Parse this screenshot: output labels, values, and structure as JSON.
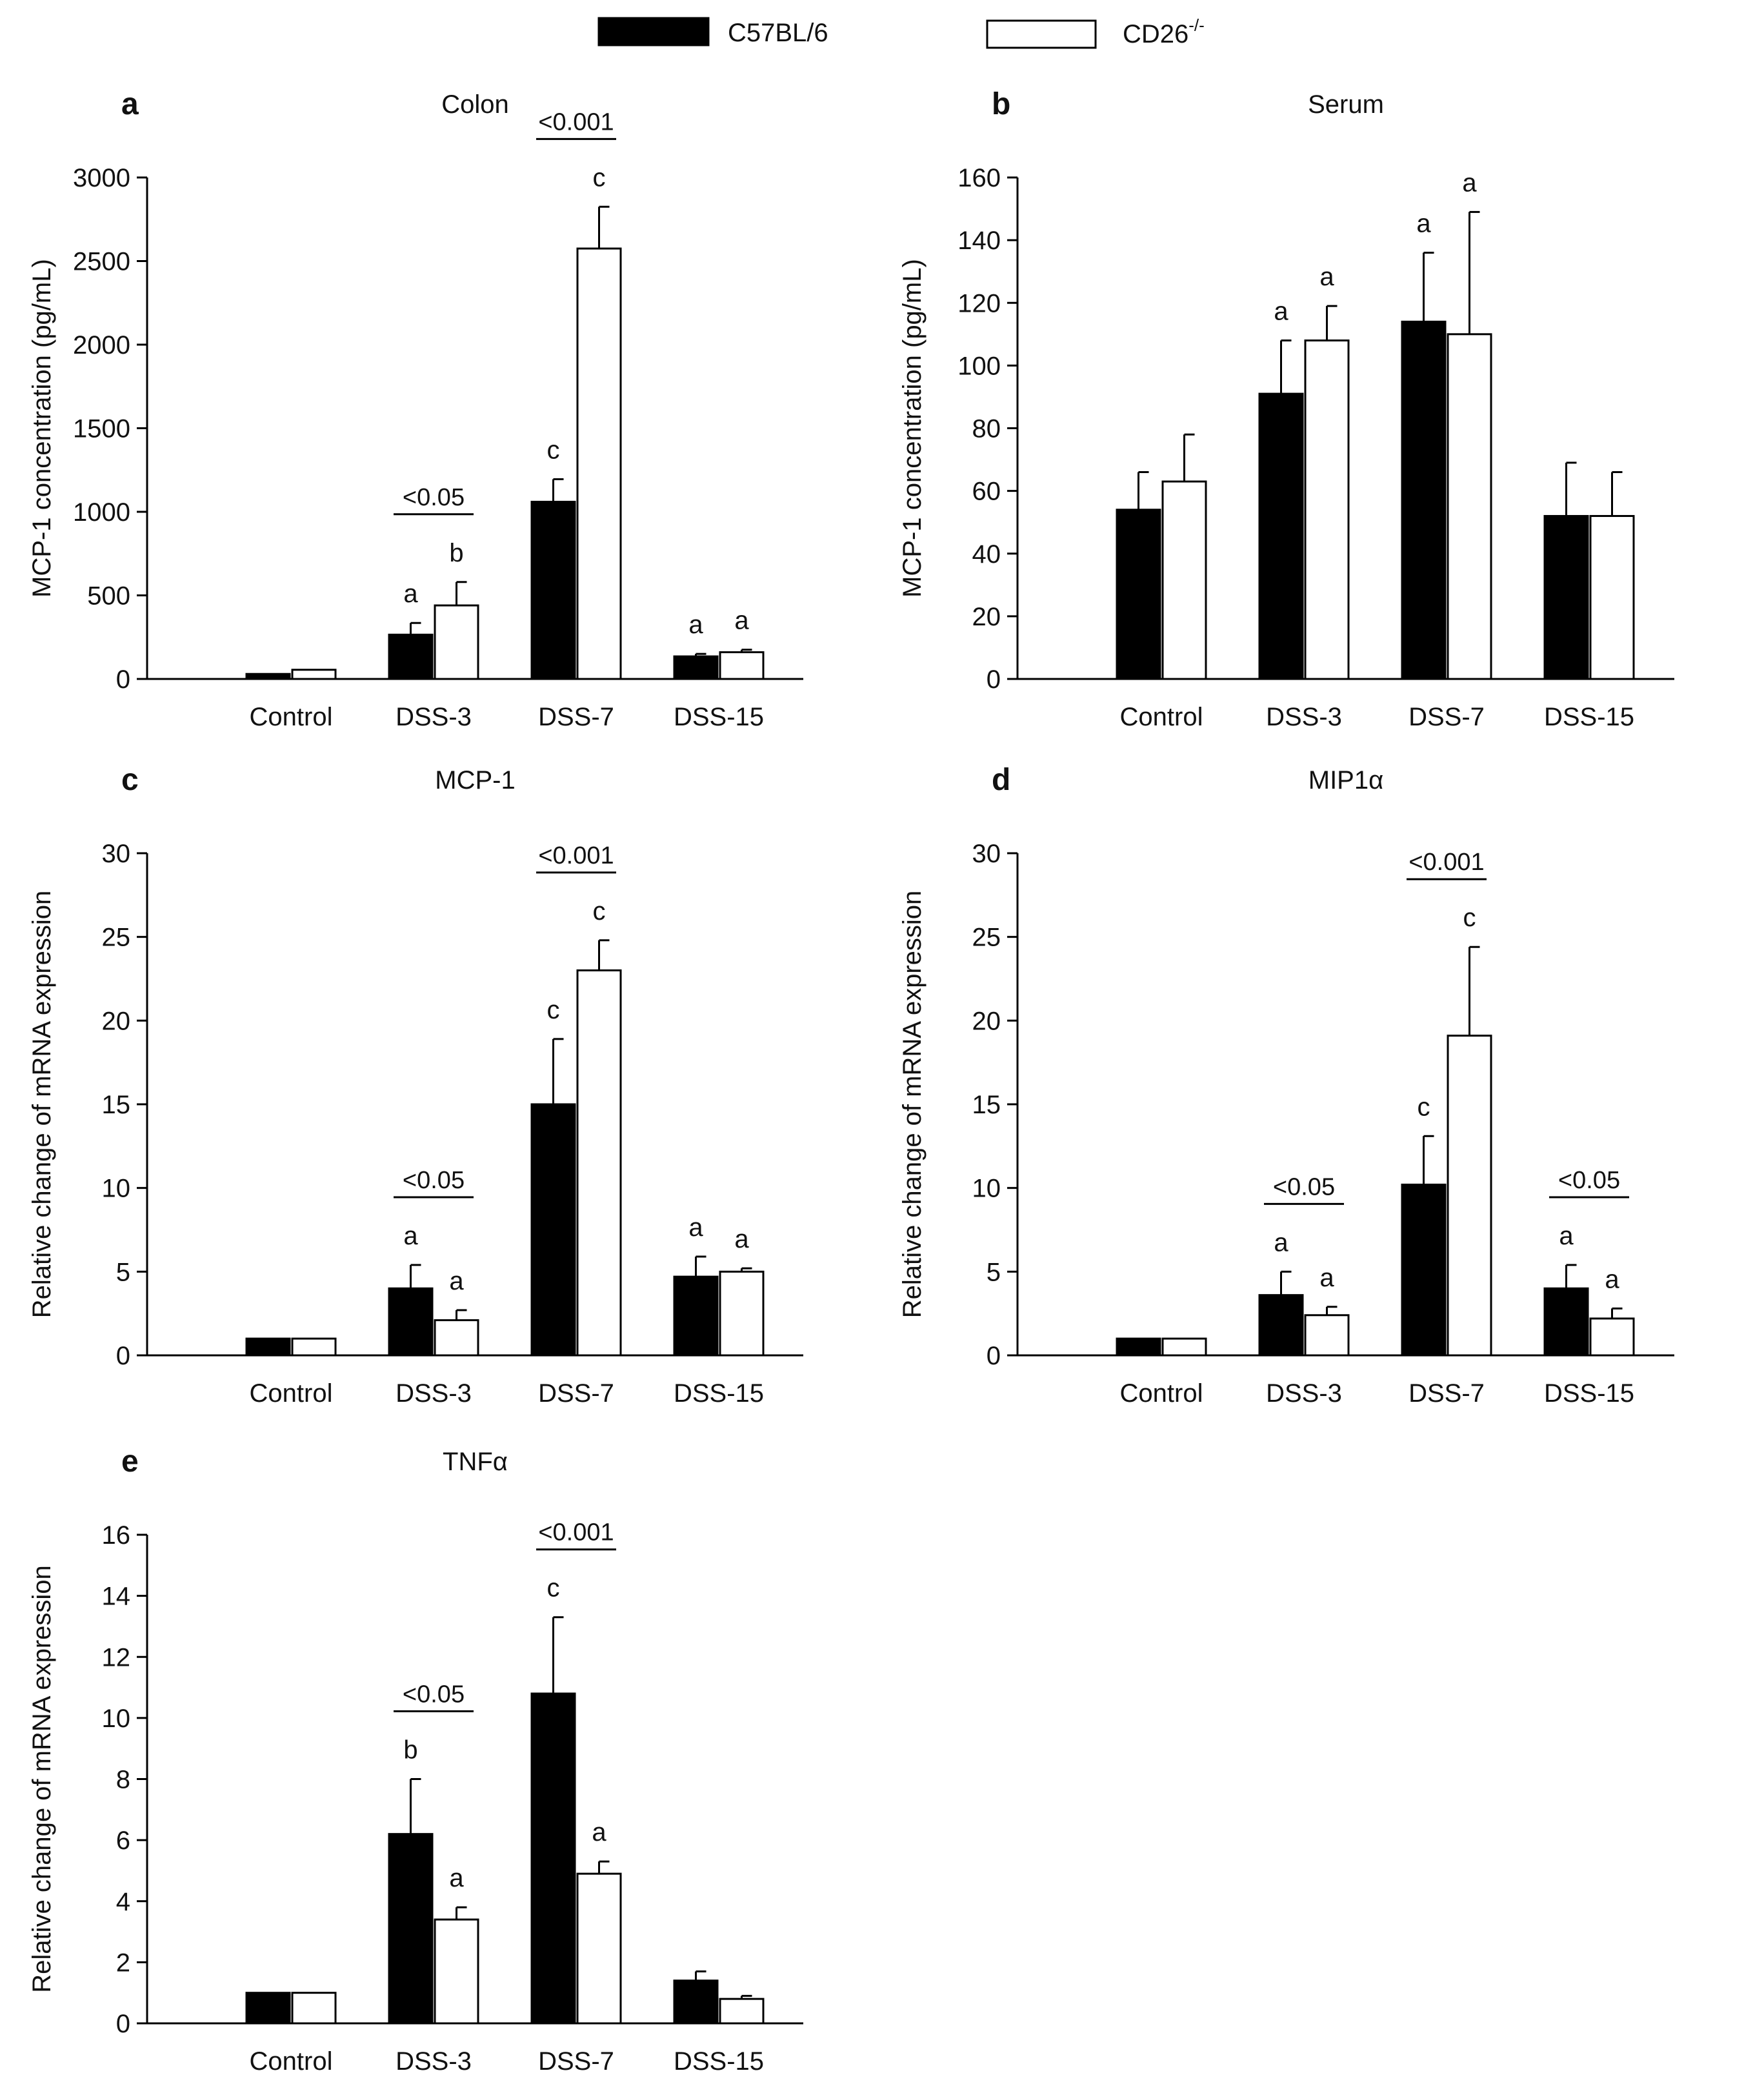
{
  "legend": {
    "items": [
      {
        "name": "C57BL/6",
        "base": "C57BL/6",
        "sup": "",
        "fill": "#000000"
      },
      {
        "name": "CD26-/-",
        "base": "CD26",
        "sup": "-/-",
        "fill": "#ffffff"
      }
    ]
  },
  "colors": {
    "series_1": "#000000",
    "series_2": "#ffffff",
    "stroke": "#000000"
  },
  "chart_data": [
    {
      "panel": "a",
      "type": "bar",
      "title": "Colon",
      "ylabel": "MCP-1 concentration (pg/mL)",
      "xlabel": "",
      "categories": [
        "Control",
        "DSS-3",
        "DSS-7",
        "DSS-15"
      ],
      "ylim": [
        0,
        3000
      ],
      "yticks": [
        0,
        500,
        1000,
        1500,
        2000,
        2500,
        3000
      ],
      "series": [
        {
          "name": "C57BL/6",
          "values": [
            30,
            265,
            1060,
            135
          ],
          "errors": [
            0,
            70,
            135,
            15
          ],
          "labels": [
            "",
            "a",
            "c",
            "a"
          ]
        },
        {
          "name": "CD26-/-",
          "values": [
            55,
            440,
            2575,
            160
          ],
          "errors": [
            0,
            140,
            250,
            15
          ],
          "labels": [
            "",
            "b",
            "c",
            "a"
          ]
        }
      ],
      "comparisons": [
        {
          "category": "DSS-3",
          "label": "<0.05"
        },
        {
          "category": "DSS-7",
          "label": "<0.001"
        }
      ]
    },
    {
      "panel": "b",
      "type": "bar",
      "title": "Serum",
      "ylabel": "MCP-1 concentration (pg/mL)",
      "xlabel": "",
      "categories": [
        "Control",
        "DSS-3",
        "DSS-7",
        "DSS-15"
      ],
      "ylim": [
        0,
        160
      ],
      "yticks": [
        0,
        20,
        40,
        60,
        80,
        100,
        120,
        140,
        160
      ],
      "series": [
        {
          "name": "C57BL/6",
          "values": [
            54,
            91,
            114,
            52
          ],
          "errors": [
            12,
            17,
            22,
            17
          ],
          "labels": [
            "",
            "a",
            "a",
            ""
          ]
        },
        {
          "name": "CD26-/-",
          "values": [
            63,
            108,
            110,
            52
          ],
          "errors": [
            15,
            11,
            39,
            14
          ],
          "labels": [
            "",
            "a",
            "a",
            ""
          ]
        }
      ],
      "comparisons": []
    },
    {
      "panel": "c",
      "type": "bar",
      "title": "MCP-1",
      "ylabel": "Relative change of mRNA expression",
      "xlabel": "",
      "categories": [
        "Control",
        "DSS-3",
        "DSS-7",
        "DSS-15"
      ],
      "ylim": [
        0,
        30
      ],
      "yticks": [
        0,
        5,
        10,
        15,
        20,
        25,
        30
      ],
      "series": [
        {
          "name": "C57BL/6",
          "values": [
            1,
            4,
            15,
            4.7
          ],
          "errors": [
            0,
            1.4,
            3.9,
            1.2
          ],
          "labels": [
            "",
            "a",
            "c",
            "a"
          ]
        },
        {
          "name": "CD26-/-",
          "values": [
            1,
            2.1,
            23,
            5
          ],
          "errors": [
            0,
            0.6,
            1.8,
            0.2
          ],
          "labels": [
            "",
            "a",
            "c",
            "a"
          ]
        }
      ],
      "comparisons": [
        {
          "category": "DSS-3",
          "label": "<0.05"
        },
        {
          "category": "DSS-7",
          "label": "<0.001"
        }
      ]
    },
    {
      "panel": "d",
      "type": "bar",
      "title": "MIP1α",
      "ylabel": "Relative change of mRNA expression",
      "xlabel": "",
      "categories": [
        "Control",
        "DSS-3",
        "DSS-7",
        "DSS-15"
      ],
      "ylim": [
        0,
        30
      ],
      "yticks": [
        0,
        5,
        10,
        15,
        20,
        25,
        30
      ],
      "series": [
        {
          "name": "C57BL/6",
          "values": [
            1,
            3.6,
            10.2,
            4
          ],
          "errors": [
            0,
            1.4,
            2.9,
            1.4
          ],
          "labels": [
            "",
            "a",
            "c",
            "a"
          ]
        },
        {
          "name": "CD26-/-",
          "values": [
            1,
            2.4,
            19.1,
            2.2
          ],
          "errors": [
            0,
            0.5,
            5.3,
            0.6
          ],
          "labels": [
            "",
            "a",
            "c",
            "a"
          ]
        }
      ],
      "comparisons": [
        {
          "category": "DSS-3",
          "label": "<0.05"
        },
        {
          "category": "DSS-7",
          "label": "<0.001"
        },
        {
          "category": "DSS-15",
          "label": "<0.05"
        }
      ]
    },
    {
      "panel": "e",
      "type": "bar",
      "title": "TNFα",
      "ylabel": "Relative change of mRNA expression",
      "xlabel": "",
      "categories": [
        "Control",
        "DSS-3",
        "DSS-7",
        "DSS-15"
      ],
      "ylim": [
        0,
        16
      ],
      "yticks": [
        0,
        2,
        4,
        6,
        8,
        10,
        12,
        14,
        16
      ],
      "series": [
        {
          "name": "C57BL/6",
          "values": [
            1,
            6.2,
            10.8,
            1.4
          ],
          "errors": [
            0,
            1.8,
            2.5,
            0.3
          ],
          "labels": [
            "",
            "b",
            "c",
            ""
          ]
        },
        {
          "name": "CD26-/-",
          "values": [
            1,
            3.4,
            4.9,
            0.8
          ],
          "errors": [
            0,
            0.4,
            0.4,
            0.1
          ],
          "labels": [
            "",
            "a",
            "a",
            ""
          ]
        }
      ],
      "comparisons": [
        {
          "category": "DSS-3",
          "label": "<0.05"
        },
        {
          "category": "DSS-7",
          "label": "<0.001"
        }
      ]
    }
  ]
}
